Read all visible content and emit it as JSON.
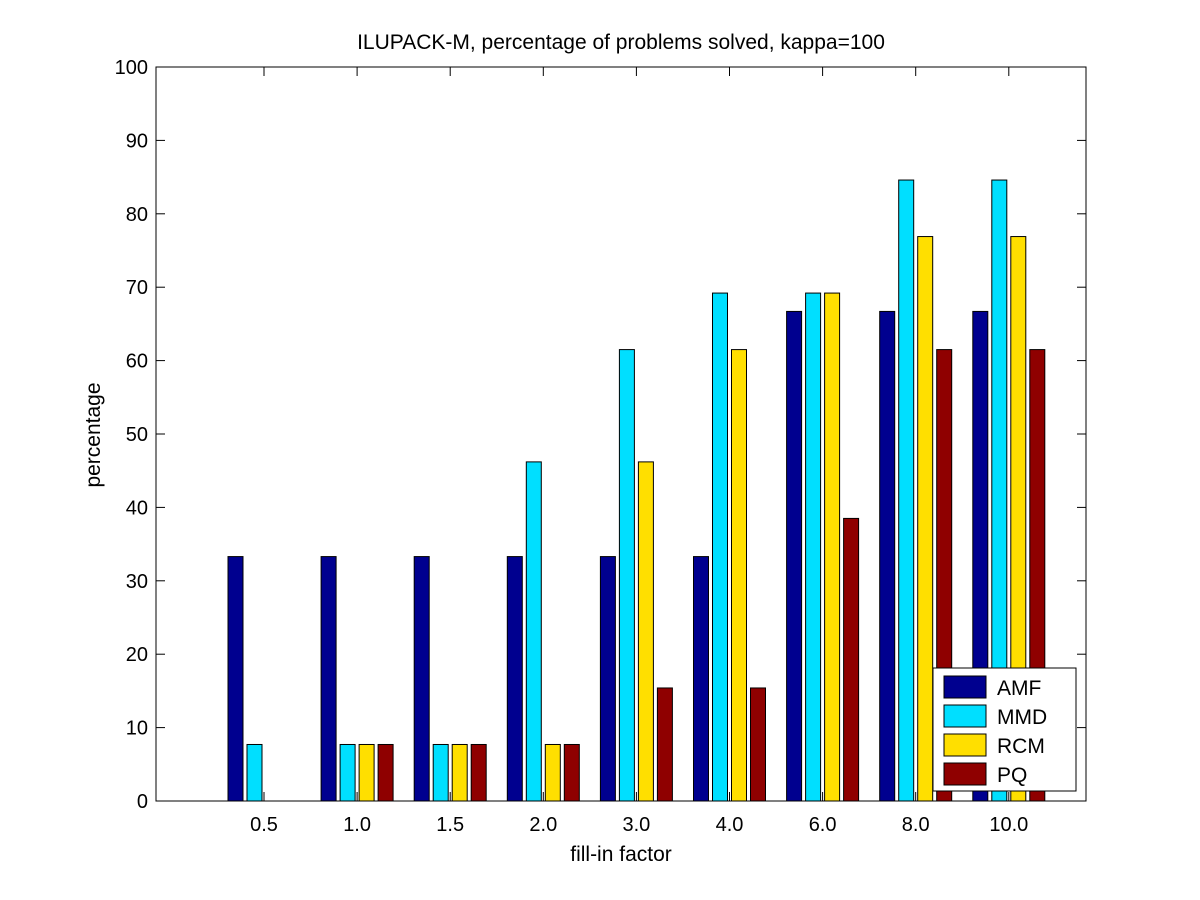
{
  "chart_data": {
    "type": "bar",
    "title": "ILUPACK-M, percentage of problems solved, kappa=100",
    "xlabel": "fill-in factor",
    "ylabel": "percentage",
    "ylim": [
      0,
      100
    ],
    "yticks": [
      0,
      10,
      20,
      30,
      40,
      50,
      60,
      70,
      80,
      90,
      100
    ],
    "categories": [
      "0.5",
      "1.0",
      "1.5",
      "2.0",
      "3.0",
      "4.0",
      "6.0",
      "8.0",
      "10.0"
    ],
    "series": [
      {
        "name": "AMF",
        "color": "#00008F",
        "values": [
          33.3,
          33.3,
          33.3,
          33.3,
          33.3,
          33.3,
          66.7,
          66.7,
          66.7
        ]
      },
      {
        "name": "MMD",
        "color": "#00DFFF",
        "values": [
          7.7,
          7.7,
          7.7,
          46.2,
          61.5,
          69.2,
          69.2,
          84.6,
          84.6
        ]
      },
      {
        "name": "RCM",
        "color": "#FFDF00",
        "values": [
          0,
          7.7,
          7.7,
          7.7,
          46.2,
          61.5,
          69.2,
          76.9,
          76.9
        ]
      },
      {
        "name": "PQ",
        "color": "#8F0000",
        "values": [
          0,
          7.7,
          7.7,
          7.7,
          15.4,
          15.4,
          38.5,
          61.5,
          61.5
        ]
      }
    ],
    "grid": false,
    "legend_position": "bottom-right"
  }
}
